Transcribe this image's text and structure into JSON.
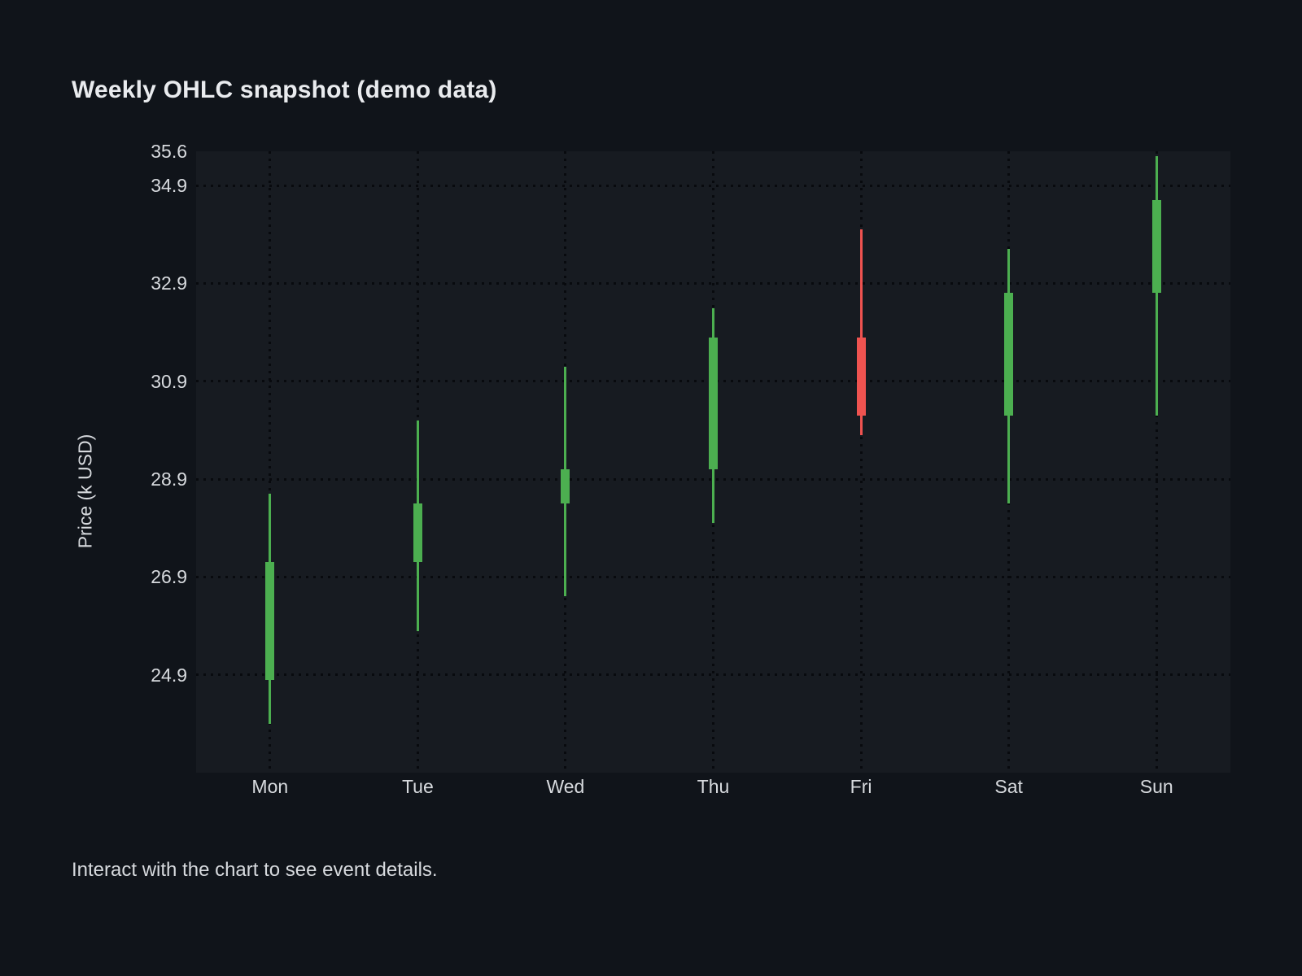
{
  "page": {
    "title": "Weekly OHLC snapshot (demo data)",
    "footer": "Interact with the chart to see event details."
  },
  "chart_data": {
    "type": "candlestick",
    "title": "Weekly OHLC snapshot (demo data)",
    "xlabel": "",
    "ylabel": "Price (k USD)",
    "categories": [
      "Mon",
      "Tue",
      "Wed",
      "Thu",
      "Fri",
      "Sat",
      "Sun"
    ],
    "series": [
      {
        "day": "Mon",
        "open": 24.8,
        "high": 28.6,
        "low": 23.9,
        "close": 27.2
      },
      {
        "day": "Tue",
        "open": 27.2,
        "high": 30.1,
        "low": 25.8,
        "close": 28.4
      },
      {
        "day": "Wed",
        "open": 28.4,
        "high": 31.2,
        "low": 26.5,
        "close": 29.1
      },
      {
        "day": "Thu",
        "open": 29.1,
        "high": 32.4,
        "low": 28.0,
        "close": 31.8
      },
      {
        "day": "Fri",
        "open": 31.8,
        "high": 34.0,
        "low": 29.8,
        "close": 30.2
      },
      {
        "day": "Sat",
        "open": 30.2,
        "high": 33.6,
        "low": 28.4,
        "close": 32.7
      },
      {
        "day": "Sun",
        "open": 32.7,
        "high": 35.5,
        "low": 30.2,
        "close": 34.6
      }
    ],
    "ylim": [
      22.9,
      35.6
    ],
    "yticks": [
      35.6,
      34.9,
      32.9,
      30.9,
      28.9,
      26.9,
      24.9
    ],
    "grid": "dotted",
    "legend": "none",
    "colors": {
      "up": "#4caf50",
      "down": "#ef5350",
      "grid": "#080a0e",
      "plot_bg": "#171b21",
      "page_bg": "#10141a",
      "text": "#d7dade",
      "title_text": "#e9ebee"
    }
  }
}
